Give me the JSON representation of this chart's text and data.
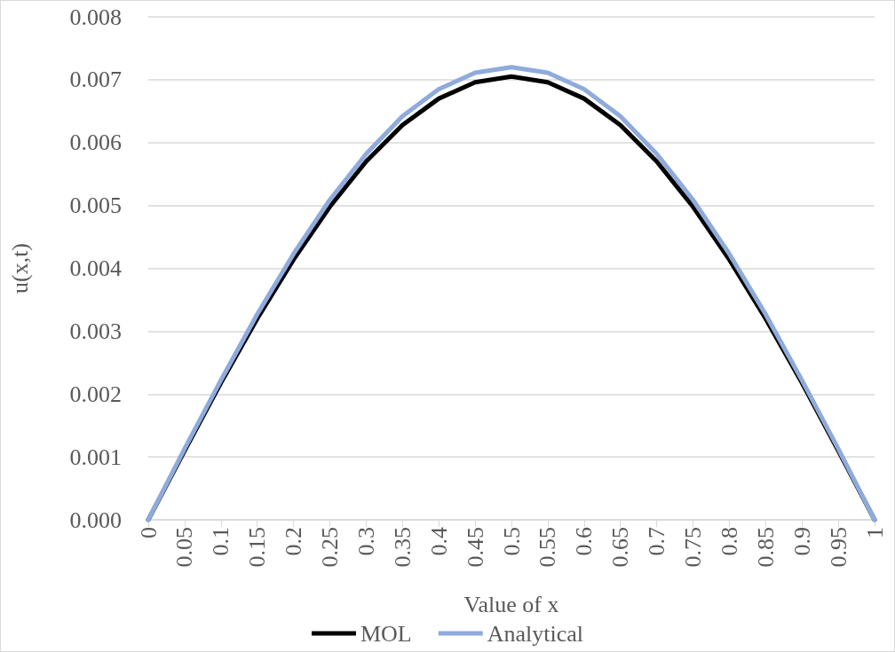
{
  "chart_data": {
    "type": "line",
    "xlabel": "Value of x",
    "ylabel": "u(x,t)",
    "categories": [
      "0",
      "0.05",
      "0.1",
      "0.15",
      "0.2",
      "0.25",
      "0.3",
      "0.35",
      "0.4",
      "0.45",
      "0.5",
      "0.55",
      "0.6",
      "0.65",
      "0.7",
      "0.75",
      "0.8",
      "0.85",
      "0.9",
      "0.95",
      "1"
    ],
    "series": [
      {
        "name": "MOL",
        "color": "#000000",
        "values": [
          0,
          0.0011,
          0.00218,
          0.0032,
          0.00414,
          0.00498,
          0.0057,
          0.00628,
          0.0067,
          0.00696,
          0.00705,
          0.00696,
          0.0067,
          0.00628,
          0.0057,
          0.00498,
          0.00414,
          0.0032,
          0.00218,
          0.0011,
          0
        ]
      },
      {
        "name": "Analytical",
        "color": "#8faadc",
        "values": [
          0,
          0.00113,
          0.00222,
          0.00327,
          0.00423,
          0.00509,
          0.00582,
          0.00642,
          0.00685,
          0.00711,
          0.0072,
          0.00711,
          0.00685,
          0.00642,
          0.00582,
          0.00509,
          0.00423,
          0.00327,
          0.00222,
          0.00113,
          0
        ]
      }
    ],
    "ylim": [
      0,
      0.008
    ],
    "yticks": [
      {
        "value": 0,
        "label": "0.000"
      },
      0.001,
      0.002,
      0.003,
      0.004,
      0.005,
      0.006,
      0.007,
      0.008
    ],
    "grid": "y",
    "legend": "bottom",
    "marker": "none",
    "line_style": "solid"
  }
}
